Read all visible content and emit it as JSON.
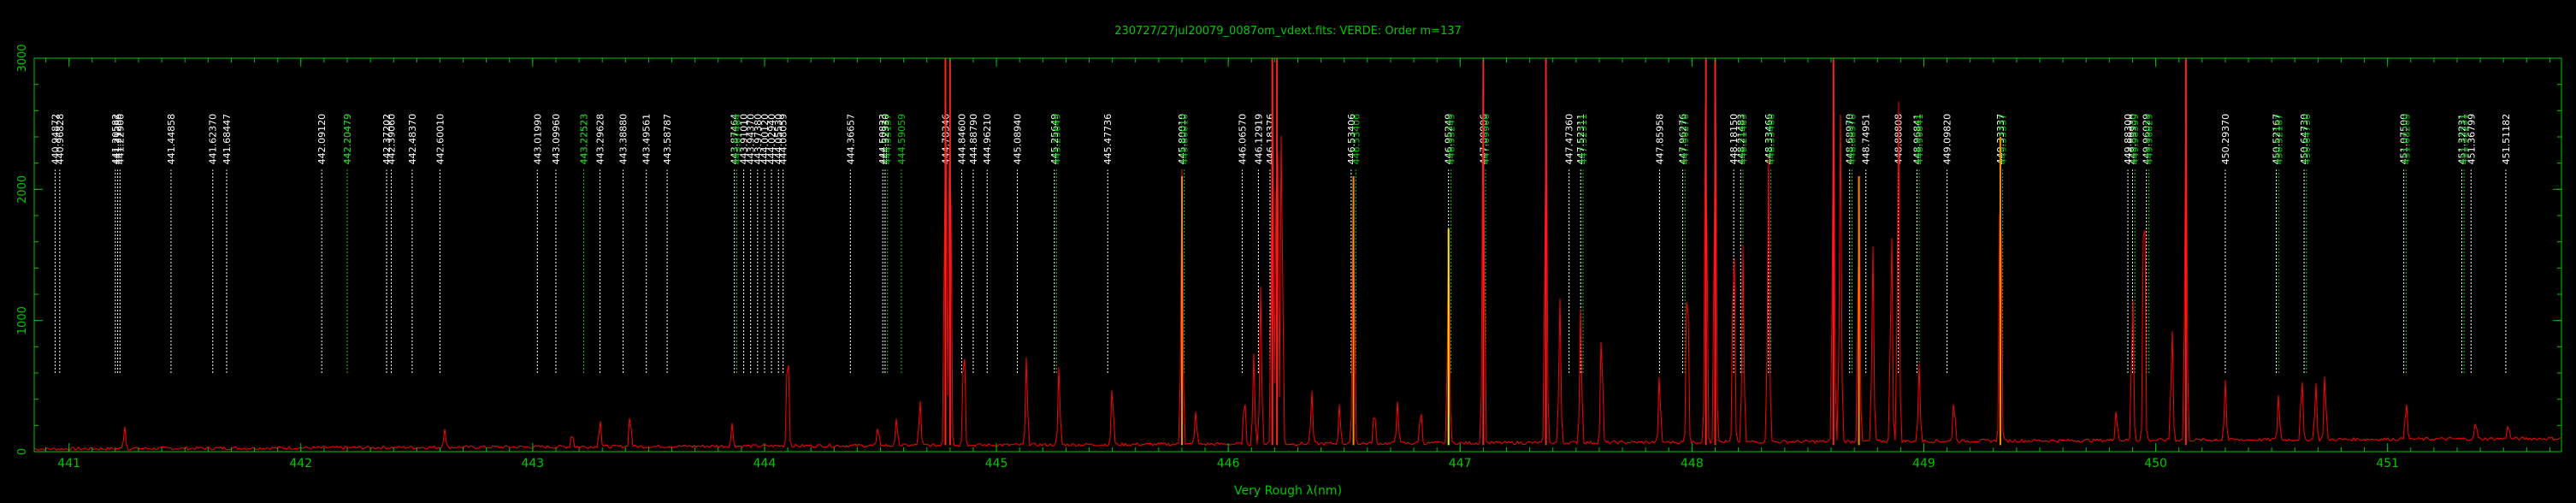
{
  "chart_data": {
    "type": "line",
    "title": "230727/27jul20079_0087om_vdext.fits: VERDE: Order m=137",
    "xlabel": "Very Rough λ(nm)",
    "ylabel": "",
    "xlim": [
      440.85,
      451.75
    ],
    "ylim": [
      0,
      3000
    ],
    "x_ticks": [
      441,
      442,
      443,
      444,
      445,
      446,
      447,
      448,
      449,
      450,
      451
    ],
    "y_ticks": [
      0,
      1000,
      2000,
      3000
    ],
    "y_tick_labels": [
      "0",
      "1000",
      "2000",
      "3000"
    ],
    "grid": false,
    "colors": {
      "background": "#000000",
      "axes": "#00c800",
      "spectrum": "#ff0000",
      "line_white": "#ffffff",
      "line_green": "#00c800",
      "peak_red": "#ff2020",
      "peak_orange": "#ff8800",
      "peak_yellow": "#ffee00"
    },
    "spectrum_continuum": 80,
    "spectrum_peaks": [
      {
        "x": 441.24,
        "y": 180
      },
      {
        "x": 442.62,
        "y": 150
      },
      {
        "x": 443.17,
        "y": 110
      },
      {
        "x": 443.29,
        "y": 220
      },
      {
        "x": 443.42,
        "y": 260
      },
      {
        "x": 443.86,
        "y": 170
      },
      {
        "x": 444.1,
        "y": 300
      },
      {
        "x": 444.1,
        "y": 560
      },
      {
        "x": 444.49,
        "y": 150
      },
      {
        "x": 444.57,
        "y": 210
      },
      {
        "x": 444.67,
        "y": 350
      },
      {
        "x": 444.78,
        "y": 3000
      },
      {
        "x": 444.8,
        "y": 3000
      },
      {
        "x": 444.86,
        "y": 900
      },
      {
        "x": 445.13,
        "y": 680
      },
      {
        "x": 445.27,
        "y": 600
      },
      {
        "x": 445.5,
        "y": 480
      },
      {
        "x": 445.8,
        "y": 2100
      },
      {
        "x": 445.86,
        "y": 260
      },
      {
        "x": 446.07,
        "y": 380
      },
      {
        "x": 446.11,
        "y": 700
      },
      {
        "x": 446.14,
        "y": 1200
      },
      {
        "x": 446.19,
        "y": 3000
      },
      {
        "x": 446.21,
        "y": 3000
      },
      {
        "x": 446.23,
        "y": 2600
      },
      {
        "x": 446.36,
        "y": 400
      },
      {
        "x": 446.48,
        "y": 300
      },
      {
        "x": 446.54,
        "y": 2100
      },
      {
        "x": 446.63,
        "y": 270
      },
      {
        "x": 446.73,
        "y": 330
      },
      {
        "x": 446.83,
        "y": 280
      },
      {
        "x": 446.95,
        "y": 1700
      },
      {
        "x": 447.1,
        "y": 3000
      },
      {
        "x": 447.37,
        "y": 3000
      },
      {
        "x": 447.43,
        "y": 1100
      },
      {
        "x": 447.52,
        "y": 1050
      },
      {
        "x": 447.61,
        "y": 900
      },
      {
        "x": 447.86,
        "y": 520
      },
      {
        "x": 447.98,
        "y": 1500
      },
      {
        "x": 448.06,
        "y": 3000
      },
      {
        "x": 448.1,
        "y": 3000
      },
      {
        "x": 448.18,
        "y": 1800
      },
      {
        "x": 448.22,
        "y": 1500
      },
      {
        "x": 448.33,
        "y": 2200
      },
      {
        "x": 448.61,
        "y": 3000
      },
      {
        "x": 448.64,
        "y": 2500
      },
      {
        "x": 448.72,
        "y": 2100
      },
      {
        "x": 448.78,
        "y": 1500
      },
      {
        "x": 448.86,
        "y": 1700
      },
      {
        "x": 448.89,
        "y": 2700
      },
      {
        "x": 448.98,
        "y": 600
      },
      {
        "x": 449.13,
        "y": 350
      },
      {
        "x": 449.33,
        "y": 2400
      },
      {
        "x": 449.83,
        "y": 250
      },
      {
        "x": 449.9,
        "y": 1200
      },
      {
        "x": 449.95,
        "y": 2300
      },
      {
        "x": 450.07,
        "y": 900
      },
      {
        "x": 450.13,
        "y": 3000
      },
      {
        "x": 450.3,
        "y": 460
      },
      {
        "x": 450.53,
        "y": 350
      },
      {
        "x": 450.63,
        "y": 500
      },
      {
        "x": 450.69,
        "y": 450
      },
      {
        "x": 450.73,
        "y": 520
      },
      {
        "x": 451.08,
        "y": 320
      },
      {
        "x": 451.38,
        "y": 140
      },
      {
        "x": 451.52,
        "y": 120
      }
    ],
    "colored_peaks": [
      {
        "x": 444.78,
        "color": "red"
      },
      {
        "x": 444.8,
        "color": "red"
      },
      {
        "x": 445.8,
        "color": "orange"
      },
      {
        "x": 446.19,
        "color": "red"
      },
      {
        "x": 446.21,
        "color": "red"
      },
      {
        "x": 446.54,
        "color": "orange"
      },
      {
        "x": 446.95,
        "color": "yellow"
      },
      {
        "x": 447.1,
        "color": "red"
      },
      {
        "x": 447.37,
        "color": "red"
      },
      {
        "x": 448.06,
        "color": "red"
      },
      {
        "x": 448.1,
        "color": "red"
      },
      {
        "x": 448.61,
        "color": "red"
      },
      {
        "x": 448.72,
        "color": "orange"
      },
      {
        "x": 449.33,
        "color": "orange"
      },
      {
        "x": 450.13,
        "color": "red"
      }
    ],
    "line_marker_y": [
      600,
      2150
    ],
    "line_markers": [
      {
        "x": 440.94,
        "label": "440.94872",
        "color": "white"
      },
      {
        "x": 440.96,
        "label": "440.96828",
        "color": "white"
      },
      {
        "x": 441.2,
        "label": "441.20582",
        "color": "white"
      },
      {
        "x": 441.21,
        "label": "441.21286",
        "color": "white"
      },
      {
        "x": 441.22,
        "label": "441.22900",
        "color": "white"
      },
      {
        "x": 441.44,
        "label": "441.44858",
        "color": "white"
      },
      {
        "x": 441.62,
        "label": "441.62370",
        "color": "white"
      },
      {
        "x": 441.68,
        "label": "441.68447",
        "color": "white"
      },
      {
        "x": 442.09,
        "label": "442.09120",
        "color": "white"
      },
      {
        "x": 442.2,
        "label": "442.20479",
        "color": "white"
      },
      {
        "x": 442.2,
        "label": "442.20479",
        "color": "green"
      },
      {
        "x": 442.37,
        "label": "442.37202",
        "color": "white"
      },
      {
        "x": 442.39,
        "label": "442.39060",
        "color": "white"
      },
      {
        "x": 442.48,
        "label": "442.48370",
        "color": "white"
      },
      {
        "x": 442.6,
        "label": "442.60010",
        "color": "white"
      },
      {
        "x": 443.02,
        "label": "443.01990",
        "color": "white"
      },
      {
        "x": 443.1,
        "label": "443.09960",
        "color": "white"
      },
      {
        "x": 443.22,
        "label": "443.22523",
        "color": "white"
      },
      {
        "x": 443.22,
        "label": "443.22523",
        "color": "green"
      },
      {
        "x": 443.29,
        "label": "443.29628",
        "color": "white"
      },
      {
        "x": 443.39,
        "label": "443.38880",
        "color": "white"
      },
      {
        "x": 443.49,
        "label": "443.49561",
        "color": "white"
      },
      {
        "x": 443.58,
        "label": "443.58787",
        "color": "white"
      },
      {
        "x": 443.87,
        "label": "443.87464",
        "color": "white"
      },
      {
        "x": 443.88,
        "label": "443.87464",
        "color": "green"
      },
      {
        "x": 443.91,
        "label": "443.91010",
        "color": "white"
      },
      {
        "x": 443.94,
        "label": "443.94370",
        "color": "white"
      },
      {
        "x": 443.97,
        "label": "443.97380",
        "color": "white"
      },
      {
        "x": 444.0,
        "label": "444.00120",
        "color": "white"
      },
      {
        "x": 444.03,
        "label": "444.02940",
        "color": "white"
      },
      {
        "x": 444.06,
        "label": "444.05530",
        "color": "white"
      },
      {
        "x": 444.08,
        "label": "444.08059",
        "color": "white"
      },
      {
        "x": 444.37,
        "label": "444.36657",
        "color": "white"
      },
      {
        "x": 444.51,
        "label": "444.50823",
        "color": "white"
      },
      {
        "x": 444.52,
        "label": "444.52330",
        "color": "white"
      },
      {
        "x": 444.53,
        "label": "444.53157",
        "color": "green"
      },
      {
        "x": 444.59,
        "label": "444.59059",
        "color": "green"
      },
      {
        "x": 444.78,
        "label": "444.78346",
        "color": "white"
      },
      {
        "x": 444.85,
        "label": "444.84600",
        "color": "white"
      },
      {
        "x": 444.9,
        "label": "444.88790",
        "color": "white"
      },
      {
        "x": 444.96,
        "label": "444.96210",
        "color": "white"
      },
      {
        "x": 445.09,
        "label": "445.08940",
        "color": "white"
      },
      {
        "x": 445.25,
        "label": "445.25649",
        "color": "white"
      },
      {
        "x": 445.26,
        "label": "445.25649",
        "color": "green"
      },
      {
        "x": 445.48,
        "label": "445.47736",
        "color": "white"
      },
      {
        "x": 445.8,
        "label": "445.80010",
        "color": "white"
      },
      {
        "x": 445.81,
        "label": "445.80010",
        "color": "green"
      },
      {
        "x": 446.06,
        "label": "446.06570",
        "color": "white"
      },
      {
        "x": 446.13,
        "label": "446.12919",
        "color": "white"
      },
      {
        "x": 446.18,
        "label": "446.18376",
        "color": "white"
      },
      {
        "x": 446.53,
        "label": "446.53406",
        "color": "white"
      },
      {
        "x": 446.55,
        "label": "446.53406",
        "color": "green"
      },
      {
        "x": 446.95,
        "label": "446.95249",
        "color": "white"
      },
      {
        "x": 446.96,
        "label": "446.95249",
        "color": "green"
      },
      {
        "x": 447.1,
        "label": "447.09906",
        "color": "white"
      },
      {
        "x": 447.11,
        "label": "447.09906",
        "color": "green"
      },
      {
        "x": 447.47,
        "label": "447.47360",
        "color": "white"
      },
      {
        "x": 447.52,
        "label": "447.52311",
        "color": "white"
      },
      {
        "x": 447.53,
        "label": "447.52311",
        "color": "green"
      },
      {
        "x": 447.86,
        "label": "447.85958",
        "color": "white"
      },
      {
        "x": 447.96,
        "label": "447.96276",
        "color": "white"
      },
      {
        "x": 447.97,
        "label": "447.96276",
        "color": "green"
      },
      {
        "x": 448.18,
        "label": "448.18150",
        "color": "white"
      },
      {
        "x": 448.21,
        "label": "448.21483",
        "color": "white"
      },
      {
        "x": 448.22,
        "label": "448.21483",
        "color": "green"
      },
      {
        "x": 448.33,
        "label": "448.33466",
        "color": "white"
      },
      {
        "x": 448.34,
        "label": "448.33466",
        "color": "green"
      },
      {
        "x": 448.68,
        "label": "448.68970",
        "color": "white"
      },
      {
        "x": 448.69,
        "label": "448.68970",
        "color": "green"
      },
      {
        "x": 448.75,
        "label": "448.74951",
        "color": "white"
      },
      {
        "x": 448.89,
        "label": "448.88808",
        "color": "white"
      },
      {
        "x": 448.97,
        "label": "448.96841",
        "color": "white"
      },
      {
        "x": 448.98,
        "label": "448.96841",
        "color": "green"
      },
      {
        "x": 449.1,
        "label": "449.09820",
        "color": "white"
      },
      {
        "x": 449.33,
        "label": "449.33337",
        "color": "white"
      },
      {
        "x": 449.34,
        "label": "449.33337",
        "color": "green"
      },
      {
        "x": 449.88,
        "label": "449.88300",
        "color": "white"
      },
      {
        "x": 449.9,
        "label": "449.89930",
        "color": "white"
      },
      {
        "x": 449.91,
        "label": "449.90399",
        "color": "green"
      },
      {
        "x": 449.96,
        "label": "449.96029",
        "color": "white"
      },
      {
        "x": 449.97,
        "label": "449.96029",
        "color": "green"
      },
      {
        "x": 450.3,
        "label": "450.29370",
        "color": "white"
      },
      {
        "x": 450.52,
        "label": "450.52167",
        "color": "white"
      },
      {
        "x": 450.53,
        "label": "450.52167",
        "color": "green"
      },
      {
        "x": 450.64,
        "label": "450.64730",
        "color": "white"
      },
      {
        "x": 450.65,
        "label": "450.64730",
        "color": "green"
      },
      {
        "x": 451.07,
        "label": "451.07500",
        "color": "white"
      },
      {
        "x": 451.08,
        "label": "451.08209",
        "color": "green"
      },
      {
        "x": 451.32,
        "label": "451.32231",
        "color": "white"
      },
      {
        "x": 451.33,
        "label": "451.32231",
        "color": "green"
      },
      {
        "x": 451.36,
        "label": "451.36799",
        "color": "white"
      },
      {
        "x": 451.51,
        "label": "451.51182",
        "color": "white"
      }
    ]
  }
}
